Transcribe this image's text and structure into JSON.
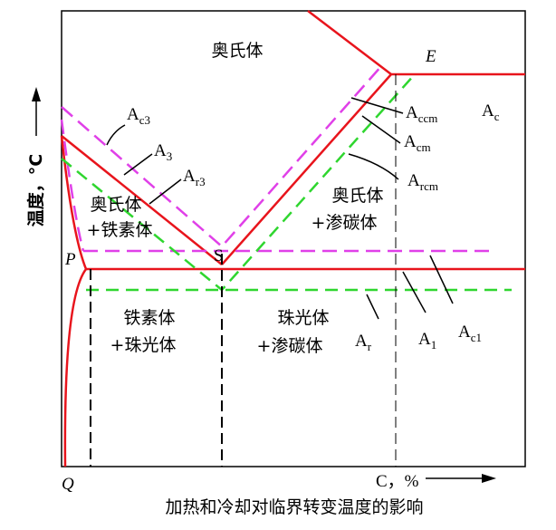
{
  "diagram": {
    "region_labels": [
      {
        "lines": [
          "奥氏体"
        ]
      },
      {
        "lines": [
          "奥氏体",
          "+铁素体"
        ]
      },
      {
        "lines": [
          "奥氏体",
          "+渗碳体"
        ]
      },
      {
        "lines": [
          "铁素体",
          "+珠光体"
        ]
      },
      {
        "lines": [
          "珠光体",
          "+渗碳体"
        ]
      }
    ],
    "point_labels": [
      "E",
      "P",
      "S",
      "Q"
    ],
    "line_labels": [
      {
        "base": "A",
        "sub": "c3"
      },
      {
        "base": "A",
        "sub": "3"
      },
      {
        "base": "A",
        "sub": "r3"
      },
      {
        "base": "A",
        "sub": "ccm"
      },
      {
        "base": "A",
        "sub": "cm"
      },
      {
        "base": "A",
        "sub": "rcm"
      },
      {
        "base": "A",
        "sub": "c"
      },
      {
        "base": "A",
        "sub": "r"
      },
      {
        "base": "A",
        "sub": "1"
      },
      {
        "base": "A",
        "sub": "c1"
      }
    ],
    "x_axis_label": "C，%",
    "y_axis_label": "温度，°C",
    "caption": "加热和冷却对临界转变温度的影响"
  }
}
